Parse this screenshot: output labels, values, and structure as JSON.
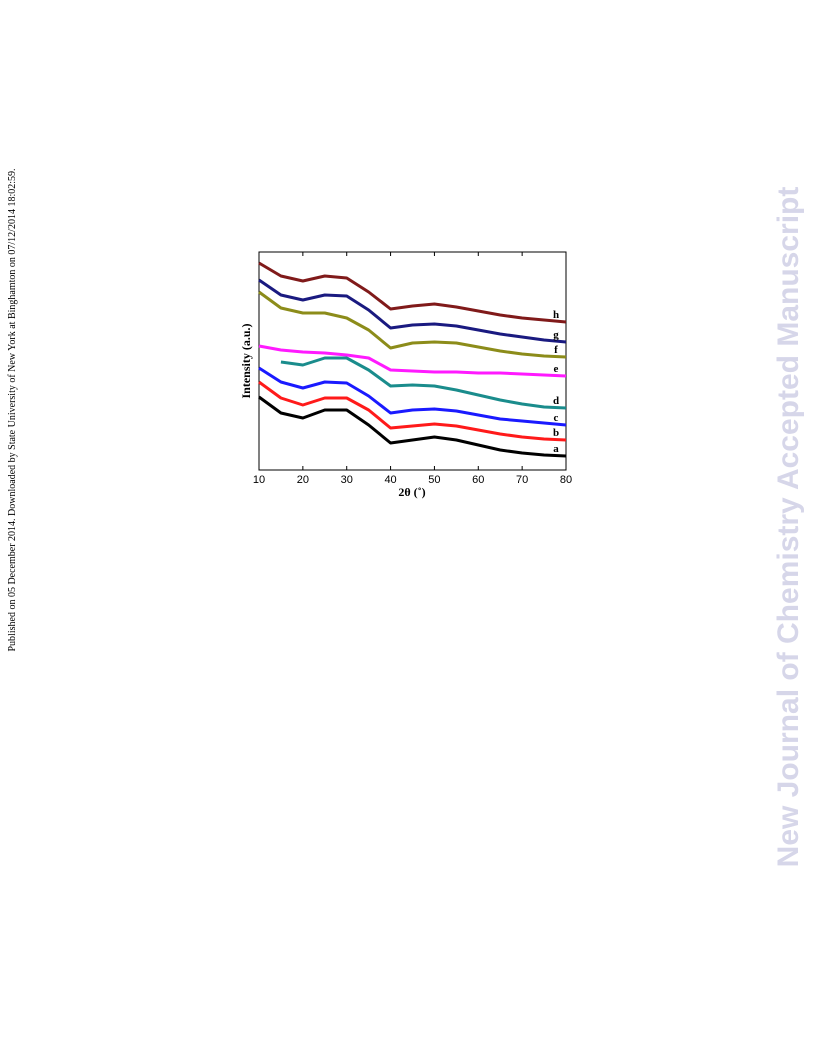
{
  "sidebar_text": "Published on 05 December 2014. Downloaded by State University of New York at Binghamton on 07/12/2014 18:02:59.",
  "watermark": "New Journal of Chemistry Accepted Manuscript",
  "chart_data": {
    "type": "line",
    "xlabel": "2θ (˚)",
    "ylabel": "Intensity (a.u.)",
    "x": [
      10,
      15,
      20,
      25,
      30,
      35,
      40,
      45,
      50,
      55,
      60,
      65,
      70,
      75,
      80
    ],
    "xlim": [
      10,
      80
    ],
    "xticks": [
      10,
      20,
      30,
      40,
      50,
      60,
      70,
      80
    ],
    "series": [
      {
        "name": "a",
        "color": "#000000",
        "values": [
          73,
          57,
          52,
          60,
          60,
          45,
          27,
          30,
          33,
          30,
          25,
          20,
          17,
          15,
          14
        ]
      },
      {
        "name": "b",
        "color": "#ff1a1a",
        "values": [
          88,
          72,
          65,
          72,
          72,
          60,
          42,
          44,
          46,
          44,
          40,
          36,
          33,
          31,
          30
        ]
      },
      {
        "name": "c",
        "color": "#1a1aff",
        "values": [
          102,
          88,
          82,
          88,
          87,
          74,
          57,
          60,
          61,
          59,
          55,
          51,
          49,
          47,
          45
        ]
      },
      {
        "name": "d",
        "color": "#1a8c8c",
        "values": [
          null,
          108,
          105,
          112,
          112,
          100,
          84,
          85,
          84,
          80,
          75,
          70,
          66,
          63,
          62
        ]
      },
      {
        "name": "e",
        "color": "#ff1aff",
        "values": [
          124,
          120,
          118,
          117,
          115,
          112,
          100,
          99,
          98,
          98,
          97,
          97,
          96,
          95,
          94
        ]
      },
      {
        "name": "f",
        "color": "#8c8c1a",
        "values": [
          178,
          162,
          157,
          157,
          152,
          140,
          122,
          127,
          128,
          127,
          123,
          119,
          116,
          114,
          113
        ]
      },
      {
        "name": "g",
        "color": "#1a1a80",
        "values": [
          190,
          175,
          170,
          175,
          174,
          160,
          142,
          145,
          146,
          144,
          140,
          136,
          133,
          130,
          128
        ]
      },
      {
        "name": "h",
        "color": "#801a1a",
        "values": [
          207,
          194,
          189,
          194,
          192,
          178,
          161,
          164,
          166,
          163,
          159,
          155,
          152,
          150,
          148
        ]
      }
    ]
  }
}
